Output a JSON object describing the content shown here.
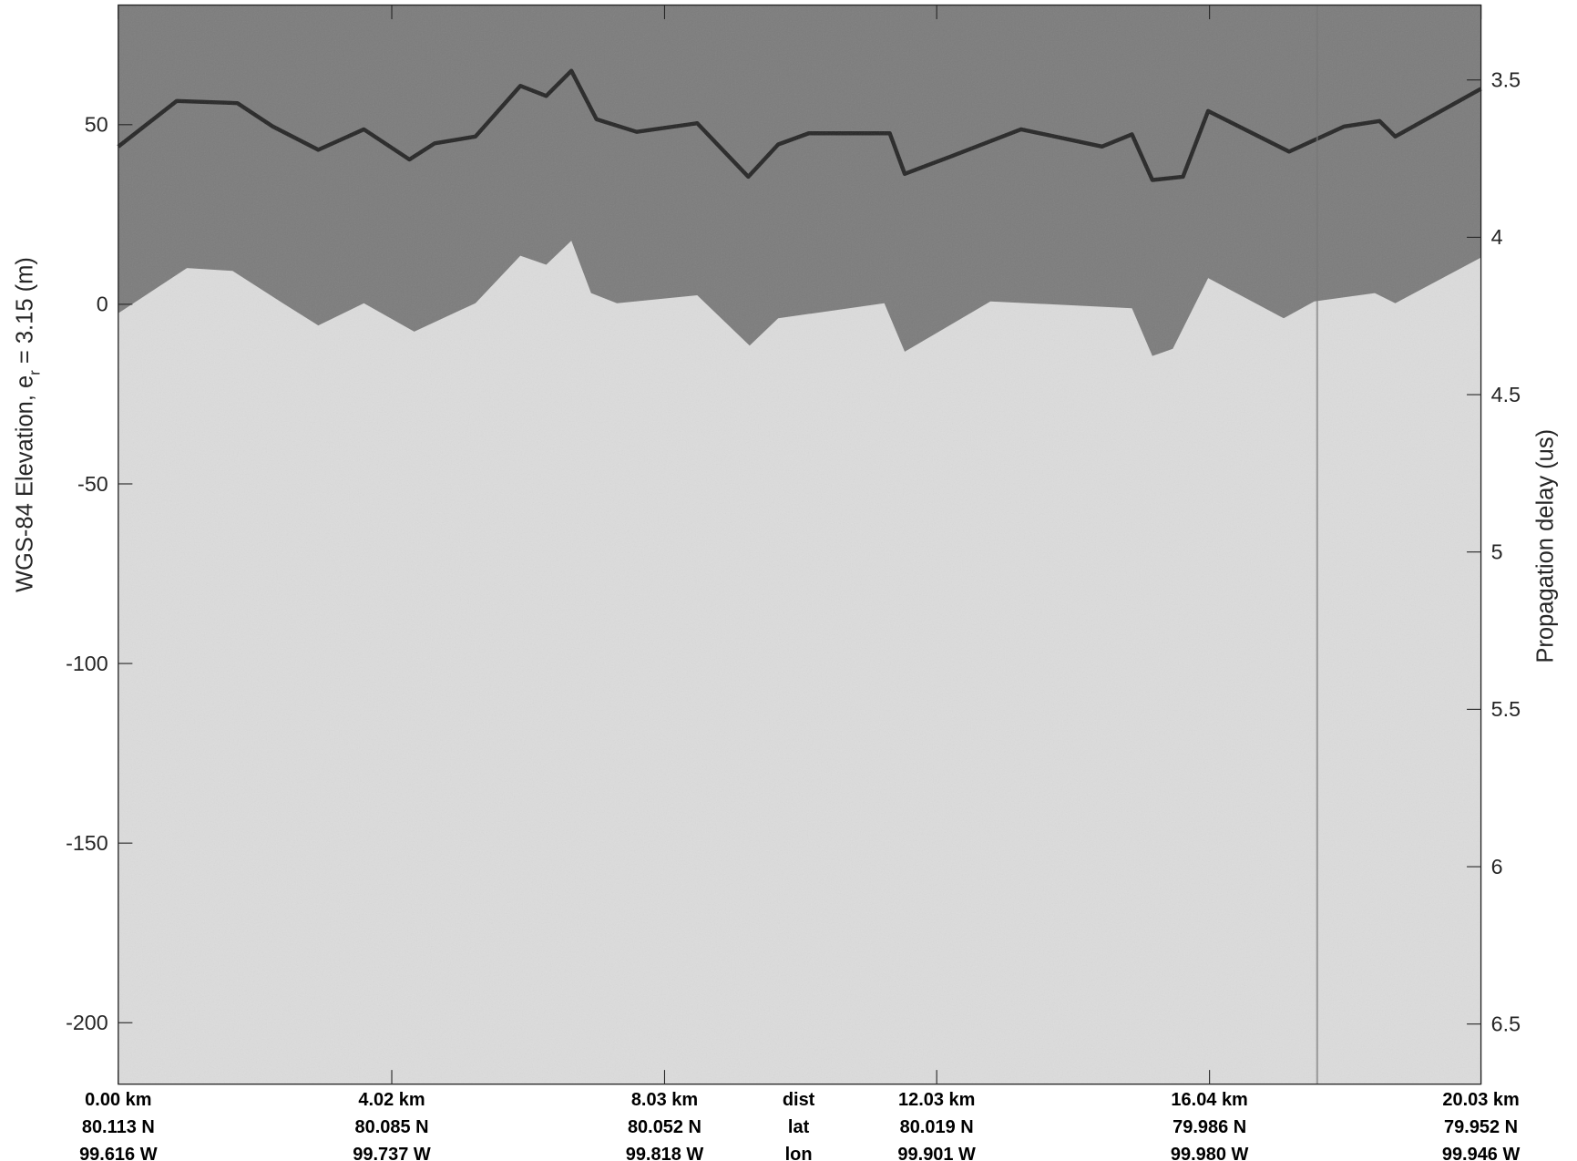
{
  "chart_data": {
    "type": "echogram",
    "ylabel": [
      "WGS-84 Elevation, e",
      "r",
      " = 3.15 (m)"
    ],
    "y2label": "Propagation delay (us)",
    "xlim": [
      0,
      20.03
    ],
    "ylim": [
      -217.1,
      83.3
    ],
    "y2lim": [
      6.691,
      3.262
    ],
    "yticks": [
      -200,
      -150,
      -100,
      -50,
      0,
      50
    ],
    "y2ticks": [
      3.5,
      4,
      4.5,
      5,
      5.5,
      6,
      6.5
    ],
    "xticks": [
      {
        "value": 0,
        "label": "0.00 km"
      },
      {
        "value": 4.02,
        "label": "4.02 km"
      },
      {
        "value": 8.03,
        "label": "8.03 km"
      },
      {
        "value": 12.03,
        "label": "12.03 km"
      },
      {
        "value": 16.04,
        "label": "16.04 km"
      },
      {
        "value": 20.03,
        "label": "20.03 km"
      }
    ],
    "lat_labels": [
      "80.113 N",
      "80.085 N",
      "80.052 N",
      "80.019 N",
      "79.986 N",
      "79.952 N"
    ],
    "lon_labels": [
      "99.616 W",
      "99.737 W",
      "99.818 W",
      "99.901 W",
      "99.980 W",
      "99.946 W"
    ],
    "row_labels": [
      "dist",
      "lat",
      "lon"
    ],
    "series": [
      {
        "color": "#262626",
        "x": [
          0,
          0.86,
          1.75,
          2.27,
          2.94,
          3.61,
          4.28,
          4.65,
          5.25,
          5.91,
          6.29,
          6.66,
          7.03,
          7.62,
          8.51,
          9.26,
          9.7,
          10.15,
          11.34,
          11.56,
          12.23,
          13.27,
          14.46,
          14.9,
          15.2,
          15.65,
          16.02,
          17.21,
          18.02,
          18.54,
          18.77,
          20.03
        ],
        "values": [
          43.9,
          56.6,
          56,
          49.5,
          43,
          48.7,
          40.3,
          44.8,
          46.7,
          60.8,
          58,
          65,
          51.5,
          48,
          50.4,
          35.5,
          44.5,
          47.6,
          47.6,
          36.3,
          41.1,
          48.7,
          43.9,
          47.3,
          34.6,
          35.5,
          53.8,
          42.5,
          49.5,
          51,
          46.7,
          60
        ]
      },
      {
        "color": "#7c7c7c",
        "x": [
          0,
          1.01,
          1.68,
          2.42,
          2.94,
          3.61,
          4.35,
          5.25,
          5.91,
          6.29,
          6.66,
          6.95,
          7.33,
          8.51,
          9.28,
          9.7,
          11.26,
          11.56,
          12.01,
          12.82,
          14.9,
          15.2,
          15.5,
          16.02,
          17.13,
          17.58,
          18.47,
          18.77,
          20.03
        ],
        "values": [
          -2.5,
          10.1,
          9.3,
          0.3,
          -5.9,
          0.3,
          -7.6,
          0.3,
          13.5,
          11,
          17.7,
          3.1,
          0.3,
          2.5,
          -11.5,
          -3.9,
          0.3,
          -13.2,
          -8.2,
          0.8,
          -1.1,
          -14.4,
          -12.4,
          7.3,
          -3.9,
          0.8,
          3.1,
          0.3,
          13
        ]
      }
    ]
  }
}
